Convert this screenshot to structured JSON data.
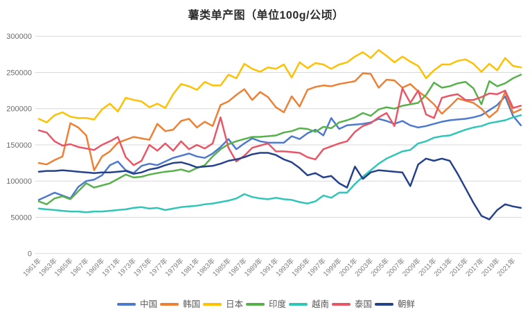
{
  "chart_data": {
    "type": "line",
    "title": "薯类单产图（单位100g/公顷）",
    "xlabel": "",
    "ylabel": "",
    "x_start_year": 1961,
    "x_end_year": 2022,
    "x_tick_labels": [
      "1961年",
      "1963年",
      "1965年",
      "1967年",
      "1969年",
      "1971年",
      "1973年",
      "1975年",
      "1977年",
      "1979年",
      "1981年",
      "1983年",
      "1985年",
      "1987年",
      "1989年",
      "1991年",
      "1993年",
      "1995年",
      "1997年",
      "1999年",
      "2001年",
      "2003年",
      "2005年",
      "2007年",
      "2009年",
      "2011年",
      "2013年",
      "2015年",
      "2017年",
      "2019年",
      "2021年"
    ],
    "ylim": [
      0,
      300000
    ],
    "y_ticks": [
      0,
      50000,
      100000,
      150000,
      200000,
      250000,
      300000
    ],
    "y_tick_labels": [
      "0",
      "50000",
      "100000",
      "150000",
      "200000",
      "250000",
      "300000"
    ],
    "grid": "horizontal",
    "grid_color": "#d9d9d9",
    "y_label_color": "#6b6b6b",
    "x_label_color": "#7f7f7f",
    "legend_position": "bottom",
    "series": [
      {
        "key": "china",
        "name": "中国",
        "color": "#4d79cc",
        "values": [
          74000,
          79000,
          84000,
          80000,
          76000,
          92000,
          100000,
          102000,
          108000,
          122000,
          127000,
          115000,
          111000,
          121000,
          124000,
          122000,
          127000,
          132000,
          135000,
          138000,
          134000,
          132000,
          138000,
          147000,
          158000,
          144000,
          152000,
          159000,
          155000,
          153000,
          153000,
          153000,
          162000,
          158000,
          166000,
          171000,
          163000,
          187000,
          172000,
          177000,
          178000,
          179000,
          181000,
          186000,
          183000,
          179000,
          183000,
          177000,
          174000,
          176000,
          179000,
          182000,
          184000,
          185000,
          186000,
          188000,
          191000,
          198000,
          205000,
          217000,
          190000,
          177000
        ]
      },
      {
        "key": "korea",
        "name": "韩国",
        "color": "#ee8033",
        "values": [
          125000,
          123000,
          129000,
          134000,
          180000,
          174000,
          163000,
          115000,
          134000,
          141000,
          153000,
          157000,
          161000,
          159000,
          157000,
          179000,
          169000,
          171000,
          183000,
          186000,
          174000,
          182000,
          176000,
          205000,
          210000,
          219000,
          227000,
          212000,
          223000,
          216000,
          202000,
          195000,
          217000,
          203000,
          226000,
          230000,
          232000,
          231000,
          234000,
          236000,
          238000,
          249000,
          248000,
          229000,
          240000,
          239000,
          229000,
          234000,
          224000,
          216000,
          206000,
          193000,
          203000,
          214000,
          211000,
          208000,
          200000,
          188000,
          197000,
          223000,
          194000,
          199000
        ]
      },
      {
        "key": "japan",
        "name": "日本",
        "color": "#fec003",
        "values": [
          186000,
          181000,
          191000,
          195000,
          189000,
          187000,
          187000,
          185000,
          199000,
          207000,
          196000,
          215000,
          212000,
          210000,
          202000,
          207000,
          201000,
          220000,
          234000,
          231000,
          226000,
          237000,
          232000,
          232000,
          247000,
          242000,
          262000,
          255000,
          251000,
          257000,
          255000,
          261000,
          243000,
          264000,
          256000,
          263000,
          261000,
          255000,
          261000,
          264000,
          272000,
          278000,
          270000,
          281000,
          273000,
          264000,
          272000,
          265000,
          259000,
          242000,
          253000,
          261000,
          261000,
          266000,
          268000,
          262000,
          251000,
          262000,
          253000,
          270000,
          259000,
          257000
        ]
      },
      {
        "key": "india",
        "name": "印度",
        "color": "#57b14b",
        "values": [
          72000,
          68000,
          76000,
          79000,
          75000,
          86000,
          97000,
          91000,
          94000,
          97000,
          103000,
          109000,
          105000,
          106000,
          109000,
          111000,
          113000,
          114000,
          116000,
          113000,
          118000,
          122000,
          134000,
          144000,
          151000,
          155000,
          158000,
          161000,
          161000,
          162000,
          163000,
          167000,
          169000,
          173000,
          172000,
          168000,
          175000,
          173000,
          181000,
          184000,
          188000,
          194000,
          190000,
          199000,
          202000,
          200000,
          204000,
          206000,
          208000,
          219000,
          236000,
          229000,
          231000,
          235000,
          237000,
          228000,
          206000,
          238000,
          231000,
          235000,
          242000,
          247000
        ]
      },
      {
        "key": "vietnam",
        "name": "越南",
        "color": "#2fc5b7",
        "values": [
          62000,
          61000,
          60000,
          59000,
          58000,
          58000,
          57000,
          58000,
          58000,
          59000,
          60000,
          61000,
          63000,
          64000,
          62000,
          63000,
          60000,
          62000,
          64000,
          65000,
          66000,
          68000,
          69000,
          71000,
          73000,
          76000,
          82000,
          78000,
          76000,
          75000,
          77000,
          75000,
          74000,
          71000,
          69000,
          72000,
          80000,
          77000,
          84000,
          84000,
          96000,
          106000,
          115000,
          124000,
          131000,
          136000,
          141000,
          143000,
          152000,
          155000,
          160000,
          162000,
          163000,
          167000,
          171000,
          174000,
          176000,
          180000,
          182000,
          184000,
          188000,
          191000
        ]
      },
      {
        "key": "thailand",
        "name": "泰国",
        "color": "#e85666",
        "values": [
          170000,
          167000,
          155000,
          149000,
          151000,
          147000,
          145000,
          143000,
          150000,
          155000,
          161000,
          133000,
          122000,
          128000,
          150000,
          142000,
          152000,
          142000,
          155000,
          144000,
          150000,
          145000,
          152000,
          188000,
          146000,
          127000,
          135000,
          146000,
          149000,
          152000,
          141000,
          141000,
          140000,
          139000,
          133000,
          130000,
          144000,
          148000,
          152000,
          155000,
          168000,
          176000,
          180000,
          188000,
          194000,
          176000,
          228000,
          208000,
          225000,
          192000,
          187000,
          215000,
          218000,
          220000,
          212000,
          212000,
          216000,
          221000,
          220000,
          225000,
          201000,
          204000
        ]
      },
      {
        "key": "dprk",
        "name": "朝鲜",
        "color": "#24418a",
        "values": [
          113000,
          114000,
          114000,
          115000,
          114000,
          113000,
          112000,
          111000,
          112000,
          112000,
          113000,
          114000,
          110000,
          112000,
          116000,
          118000,
          122000,
          125000,
          126000,
          123000,
          119000,
          120000,
          121000,
          124000,
          128000,
          130000,
          133000,
          137000,
          139000,
          139000,
          136000,
          130000,
          126000,
          118000,
          108000,
          111000,
          105000,
          107000,
          97000,
          91000,
          120000,
          103000,
          112000,
          115000,
          114000,
          113000,
          112000,
          93000,
          123000,
          131000,
          128000,
          131000,
          128000,
          110000,
          90000,
          70000,
          52000,
          47000,
          60000,
          68000,
          65000,
          63000
        ]
      }
    ]
  }
}
